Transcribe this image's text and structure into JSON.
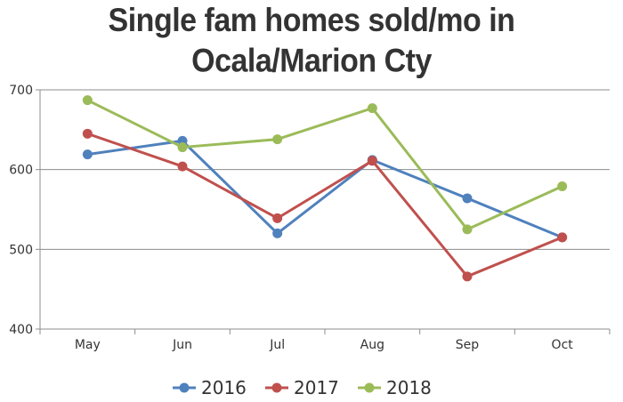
{
  "chart_data": {
    "type": "line",
    "title_line1": "Single fam homes sold/mo in",
    "title_line2": "Ocala/Marion Cty",
    "categories": [
      "May",
      "Jun",
      "Jul",
      "Aug",
      "Sep",
      "Oct"
    ],
    "ylim": [
      400,
      700
    ],
    "yticks": [
      400,
      500,
      600,
      700
    ],
    "grid": true,
    "legend_position": "bottom",
    "series": [
      {
        "name": "2016",
        "color": "#4F81BD",
        "values": [
          619,
          636,
          520,
          612,
          564,
          515
        ]
      },
      {
        "name": "2017",
        "color": "#C0504D",
        "values": [
          645,
          604,
          539,
          611,
          466,
          515
        ]
      },
      {
        "name": "2018",
        "color": "#9BBB59",
        "values": [
          687,
          628,
          638,
          677,
          525,
          579
        ]
      }
    ]
  }
}
